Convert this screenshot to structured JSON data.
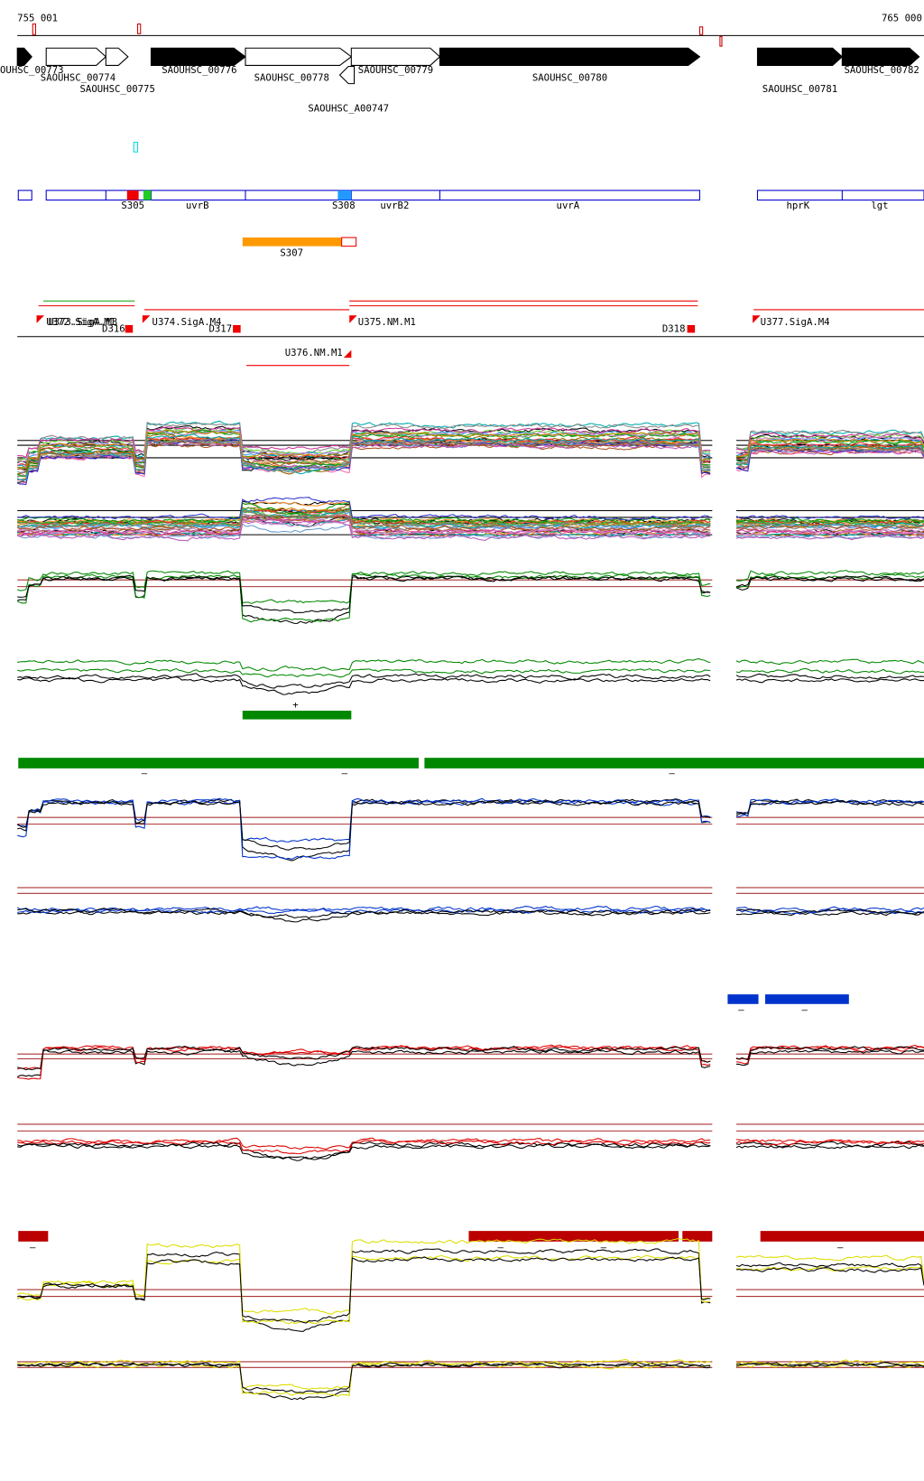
{
  "ruler": {
    "start": "755 001",
    "end": "765 000"
  },
  "genes": [
    "OUHSC_00773",
    "SAOUHSC_00774",
    "SAOUHSC_00775",
    "SAOUHSC_00776",
    "SAOUHSC_00778",
    "SAOUHSC_00779",
    "SAOUHSC_00780",
    "SAOUHSC_00781",
    "SAOUHSC_00782",
    "SAOUHSC_A00747"
  ],
  "features": [
    "S305",
    "uvrB",
    "S308",
    "uvrB2",
    "uvrA",
    "hprK",
    "lgt",
    "S307"
  ],
  "transcripts": [
    "U372.SigA.M1",
    "U373.SigA.M3",
    "D316",
    "U374.SigA.M4",
    "D317",
    "U375.NM.M1",
    "U376.NM.M1",
    "D318",
    "U377.SigA.M4"
  ],
  "strand_marks": [
    "+",
    "–",
    "–",
    "–",
    "–",
    "–",
    "–",
    "–",
    "–",
    "–"
  ]
}
